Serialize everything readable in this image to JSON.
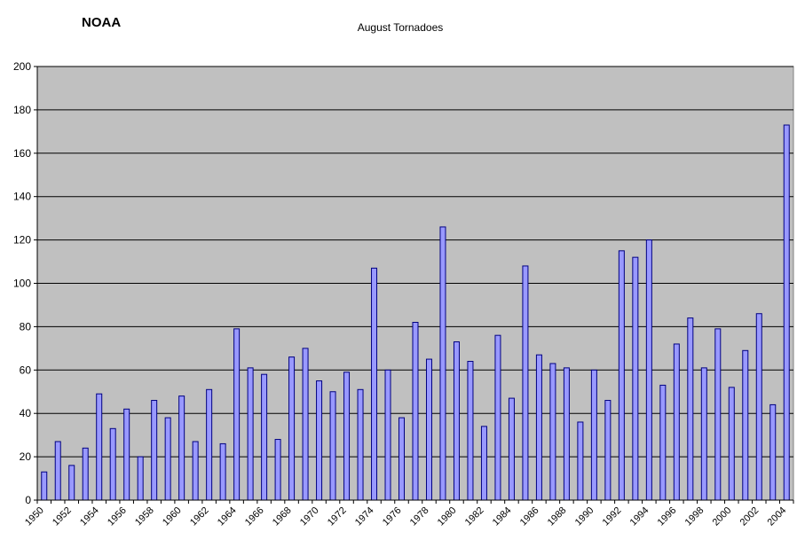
{
  "header": {
    "source_label": "NOAA"
  },
  "chart_data": {
    "type": "bar",
    "title": "August Tornadoes",
    "xlabel": "",
    "ylabel": "",
    "ylim": [
      0,
      200
    ],
    "yticks": [
      0,
      20,
      40,
      60,
      80,
      100,
      120,
      140,
      160,
      180,
      200
    ],
    "grid": true,
    "legend": "none",
    "categories": [
      "1950",
      "1951",
      "1952",
      "1953",
      "1954",
      "1955",
      "1956",
      "1957",
      "1958",
      "1959",
      "1960",
      "1961",
      "1962",
      "1963",
      "1964",
      "1965",
      "1966",
      "1967",
      "1968",
      "1969",
      "1970",
      "1971",
      "1972",
      "1973",
      "1974",
      "1975",
      "1976",
      "1977",
      "1978",
      "1979",
      "1980",
      "1981",
      "1982",
      "1983",
      "1984",
      "1985",
      "1986",
      "1987",
      "1988",
      "1989",
      "1990",
      "1991",
      "1992",
      "1993",
      "1994",
      "1995",
      "1996",
      "1997",
      "1998",
      "1999",
      "2000",
      "2001",
      "2002",
      "2003",
      "2004"
    ],
    "tick_labels": [
      "1950",
      "1952",
      "1954",
      "1956",
      "1958",
      "1960",
      "1962",
      "1964",
      "1966",
      "1968",
      "1970",
      "1972",
      "1974",
      "1976",
      "1978",
      "1980",
      "1982",
      "1984",
      "1986",
      "1988",
      "1990",
      "1992",
      "1994",
      "1996",
      "1998",
      "2000",
      "2002",
      "2004"
    ],
    "values": [
      13,
      27,
      16,
      24,
      49,
      33,
      42,
      20,
      46,
      38,
      48,
      27,
      51,
      26,
      79,
      61,
      58,
      28,
      66,
      70,
      55,
      50,
      59,
      51,
      107,
      60,
      38,
      82,
      65,
      126,
      73,
      64,
      34,
      76,
      47,
      108,
      67,
      63,
      61,
      36,
      60,
      46,
      115,
      112,
      120,
      53,
      72,
      84,
      61,
      79,
      52,
      69,
      86,
      44,
      173
    ],
    "colors": {
      "plot_background": "#c0c0c0",
      "bar_fill": "#9999ff",
      "bar_stroke": "#000080",
      "gridline": "#000000",
      "axis": "#000000",
      "text": "#000000"
    }
  }
}
